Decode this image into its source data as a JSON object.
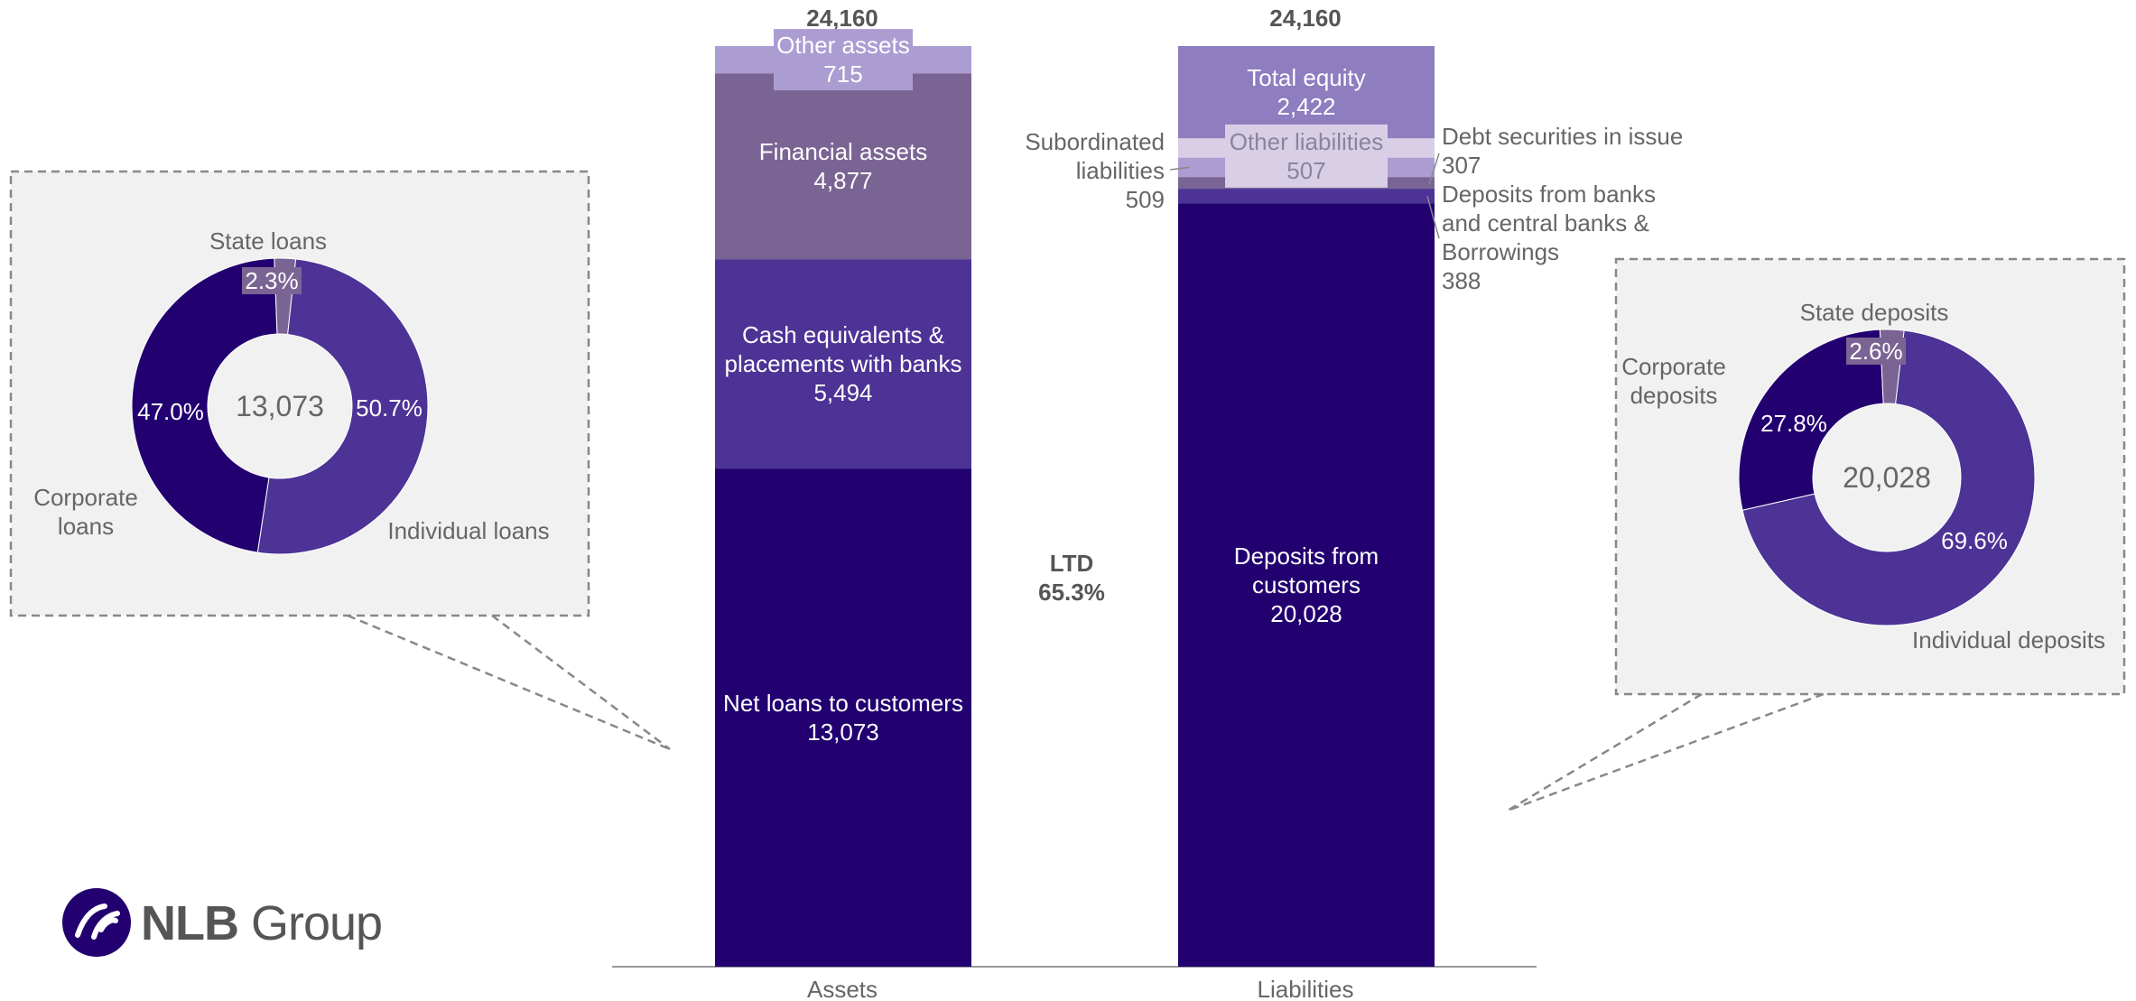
{
  "colors": {
    "dark": "#220070",
    "mid": "#4c3395",
    "mauve": "#7a6494",
    "light": "#ab9cd2",
    "lighter": "#d8cfe6",
    "equity": "#8e7dbf",
    "grey_text": "#666666",
    "callout_bg": "#f1f1f1",
    "callout_border": "#888888",
    "axis": "#999999"
  },
  "logo": {
    "text_bold": "NLB",
    "text_rest": " Group",
    "icon": "nlb-swirl-icon"
  },
  "chart_data": [
    {
      "type": "bar",
      "subtype": "stacked",
      "categories": [
        "Assets",
        "Liabilities"
      ],
      "totals": [
        "24,160",
        "24,160"
      ],
      "ltd": {
        "label": "LTD",
        "value": "65.3%"
      },
      "series": [
        {
          "category": "Assets",
          "segments": [
            {
              "name": "Net loans to customers",
              "value": 13073,
              "label": "13,073",
              "lines": [
                "Net loans to customers"
              ],
              "color": "#220070"
            },
            {
              "name": "Cash equivalents & placements with banks",
              "value": 5494,
              "label": "5,494",
              "lines": [
                "Cash equivalents &",
                "placements with banks"
              ],
              "color": "#4c3395"
            },
            {
              "name": "Financial assets",
              "value": 4877,
              "label": "4,877",
              "lines": [
                "Financial assets"
              ],
              "color": "#7a6494"
            },
            {
              "name": "Other assets",
              "value": 715,
              "label": "715",
              "lines": [
                "Other assets"
              ],
              "color": "#ab9cd2"
            }
          ]
        },
        {
          "category": "Liabilities",
          "segments": [
            {
              "name": "Deposits from customers",
              "value": 20028,
              "label": "20,028",
              "lines": [
                "Deposits from",
                "customers"
              ],
              "color": "#220070"
            },
            {
              "name": "Deposits from banks and central banks & Borrowings",
              "value": 388,
              "label": "388",
              "lines": [
                "Deposits from banks",
                "and central banks &",
                "Borrowings"
              ],
              "color": "#4c3395"
            },
            {
              "name": "Debt securities in issue",
              "value": 307,
              "label": "307",
              "lines": [
                "Debt securities in issue"
              ],
              "color": "#7a6494"
            },
            {
              "name": "Subordinated liabilities",
              "value": 509,
              "label": "509",
              "lines": [
                "Subordinated",
                "liabilities"
              ],
              "color": "#ab9cd2"
            },
            {
              "name": "Other liabilities",
              "value": 507,
              "label": "507",
              "lines": [
                "Other liabilities"
              ],
              "color": "#d8cfe6"
            },
            {
              "name": "Total equity",
              "value": 2422,
              "label": "2,422",
              "lines": [
                "Total equity"
              ],
              "color": "#8e7dbf"
            }
          ]
        }
      ],
      "ylim": [
        0,
        24160
      ]
    },
    {
      "type": "pie",
      "subtype": "donut",
      "center_label": "13,073",
      "slices": [
        {
          "name": "Individual loans",
          "lines": [
            "Individual loans"
          ],
          "value": 50.7,
          "label": "50.7%",
          "color": "#4c3395"
        },
        {
          "name": "Corporate loans",
          "lines": [
            "Corporate",
            "loans"
          ],
          "value": 47.0,
          "label": "47.0%",
          "color": "#220070"
        },
        {
          "name": "State loans",
          "lines": [
            "State loans"
          ],
          "value": 2.3,
          "label": "2.3%",
          "color": "#7a6494"
        }
      ]
    },
    {
      "type": "pie",
      "subtype": "donut",
      "center_label": "20,028",
      "slices": [
        {
          "name": "Individual deposits",
          "lines": [
            "Individual deposits"
          ],
          "value": 69.6,
          "label": "69.6%",
          "color": "#4c3395"
        },
        {
          "name": "Corporate deposits",
          "lines": [
            "Corporate",
            "deposits"
          ],
          "value": 27.8,
          "label": "27.8%",
          "color": "#220070"
        },
        {
          "name": "State deposits",
          "lines": [
            "State deposits"
          ],
          "value": 2.6,
          "label": "2.6%",
          "color": "#7a6494"
        }
      ]
    }
  ]
}
